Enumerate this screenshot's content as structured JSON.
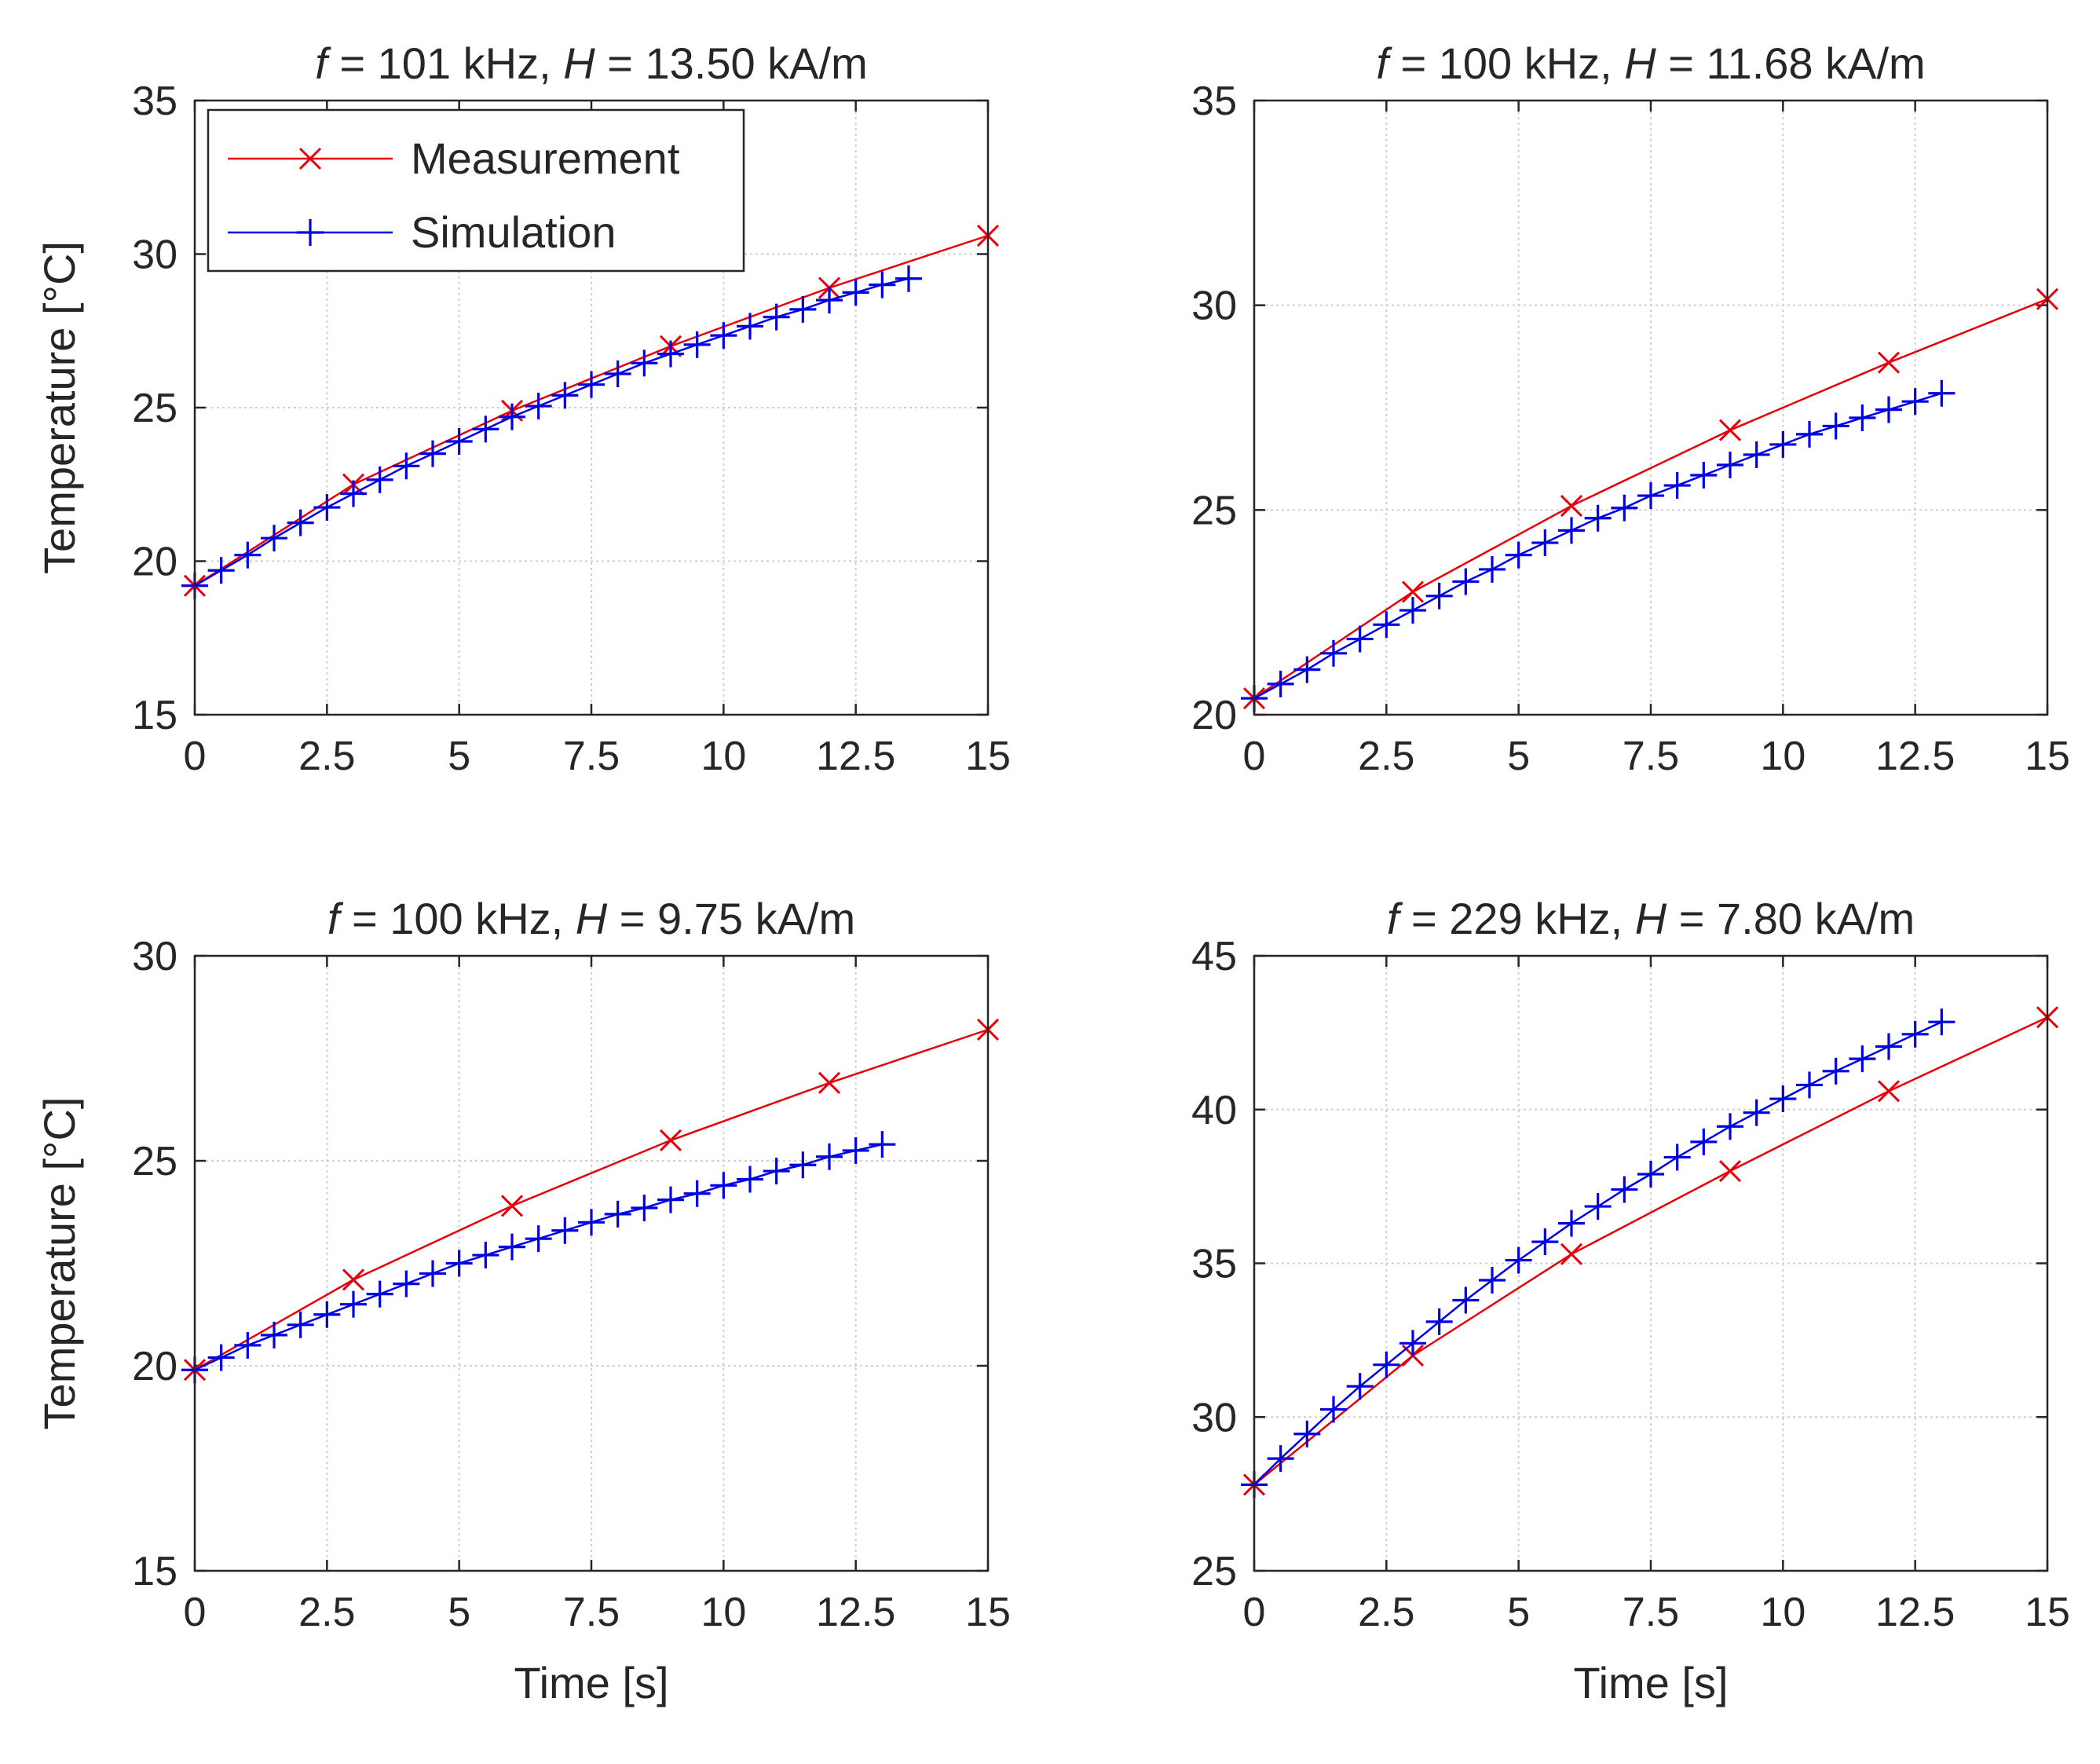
{
  "chart_data": [
    {
      "type": "line",
      "title_parts": [
        "f",
        " = 101 kHz, ",
        "H",
        " = 13.50 kA/m"
      ],
      "xlabel": "",
      "ylabel": "Temperature [°C]",
      "xlim": [
        0,
        15
      ],
      "ylim": [
        15,
        35
      ],
      "xticks": [
        0,
        2.5,
        5,
        7.5,
        10,
        12.5,
        15
      ],
      "yticks": [
        15,
        20,
        25,
        30,
        35
      ],
      "grid": true,
      "legend": {
        "placement": "top-left",
        "entries": [
          "Measurement",
          "Simulation"
        ]
      },
      "series": [
        {
          "name": "Measurement",
          "color": "#e8000b",
          "marker": "x",
          "x": [
            0,
            3,
            6,
            9,
            12,
            15
          ],
          "y": [
            19.2,
            22.5,
            24.9,
            27.0,
            28.9,
            30.6
          ]
        },
        {
          "name": "Simulation",
          "color": "#0000e6",
          "marker": "+",
          "x": [
            0,
            0.5,
            1,
            1.5,
            2,
            2.5,
            3,
            3.5,
            4,
            4.5,
            5,
            5.5,
            6,
            6.5,
            7,
            7.5,
            8,
            8.5,
            9,
            9.5,
            10,
            10.5,
            11,
            11.5,
            12,
            12.5,
            13,
            13.5
          ],
          "y": [
            19.2,
            19.7,
            20.2,
            20.75,
            21.25,
            21.75,
            22.2,
            22.65,
            23.1,
            23.5,
            23.9,
            24.3,
            24.7,
            25.05,
            25.4,
            25.75,
            26.1,
            26.45,
            26.75,
            27.05,
            27.35,
            27.65,
            27.95,
            28.2,
            28.5,
            28.75,
            29.0,
            29.2
          ]
        }
      ]
    },
    {
      "type": "line",
      "title_parts": [
        "f",
        " = 100 kHz, ",
        "H",
        " = 11.68 kA/m"
      ],
      "xlabel": "",
      "ylabel": "",
      "xlim": [
        0,
        15
      ],
      "ylim": [
        20,
        35
      ],
      "xticks": [
        0,
        2.5,
        5,
        7.5,
        10,
        12.5,
        15
      ],
      "yticks": [
        20,
        25,
        30,
        35
      ],
      "grid": true,
      "series": [
        {
          "name": "Measurement",
          "color": "#e8000b",
          "marker": "x",
          "x": [
            0,
            3,
            6,
            9,
            12,
            15
          ],
          "y": [
            20.4,
            23.0,
            25.1,
            26.95,
            28.6,
            30.15
          ]
        },
        {
          "name": "Simulation",
          "color": "#0000e6",
          "marker": "+",
          "x": [
            0,
            0.5,
            1,
            1.5,
            2,
            2.5,
            3,
            3.5,
            4,
            4.5,
            5,
            5.5,
            6,
            6.5,
            7,
            7.5,
            8,
            8.5,
            9,
            9.5,
            10,
            10.5,
            11,
            11.5,
            12,
            12.5,
            13
          ],
          "y": [
            20.4,
            20.75,
            21.1,
            21.5,
            21.85,
            22.2,
            22.55,
            22.9,
            23.25,
            23.55,
            23.9,
            24.2,
            24.5,
            24.8,
            25.05,
            25.35,
            25.6,
            25.85,
            26.1,
            26.35,
            26.6,
            26.85,
            27.05,
            27.25,
            27.45,
            27.65,
            27.85
          ]
        }
      ]
    },
    {
      "type": "line",
      "title_parts": [
        "f",
        " = 100 kHz, ",
        "H",
        " = 9.75 kA/m"
      ],
      "xlabel": "Time [s]",
      "ylabel": "Temperature [°C]",
      "xlim": [
        0,
        15
      ],
      "ylim": [
        15,
        30
      ],
      "xticks": [
        0,
        2.5,
        5,
        7.5,
        10,
        12.5,
        15
      ],
      "yticks": [
        15,
        20,
        25,
        30
      ],
      "grid": true,
      "series": [
        {
          "name": "Measurement",
          "color": "#e8000b",
          "marker": "x",
          "x": [
            0,
            3,
            6,
            9,
            12,
            15
          ],
          "y": [
            19.9,
            22.1,
            23.9,
            25.5,
            26.9,
            28.2
          ]
        },
        {
          "name": "Simulation",
          "color": "#0000e6",
          "marker": "+",
          "x": [
            0,
            0.5,
            1,
            1.5,
            2,
            2.5,
            3,
            3.5,
            4,
            4.5,
            5,
            5.5,
            6,
            6.5,
            7,
            7.5,
            8,
            8.5,
            9,
            9.5,
            10,
            10.5,
            11,
            11.5,
            12,
            12.5,
            13
          ],
          "y": [
            19.9,
            20.2,
            20.5,
            20.75,
            21.0,
            21.25,
            21.5,
            21.75,
            22.0,
            22.25,
            22.5,
            22.7,
            22.9,
            23.1,
            23.3,
            23.5,
            23.7,
            23.85,
            24.05,
            24.2,
            24.4,
            24.55,
            24.75,
            24.9,
            25.1,
            25.25,
            25.4
          ]
        }
      ]
    },
    {
      "type": "line",
      "title_parts": [
        "f",
        " = 229 kHz, ",
        "H",
        " = 7.80 kA/m"
      ],
      "xlabel": "Time [s]",
      "ylabel": "",
      "xlim": [
        0,
        15
      ],
      "ylim": [
        25,
        45
      ],
      "xticks": [
        0,
        2.5,
        5,
        7.5,
        10,
        12.5,
        15
      ],
      "yticks": [
        25,
        30,
        35,
        40,
        45
      ],
      "grid": true,
      "series": [
        {
          "name": "Measurement",
          "color": "#e8000b",
          "marker": "x",
          "x": [
            0,
            3,
            6,
            9,
            12,
            15
          ],
          "y": [
            27.8,
            32.0,
            35.3,
            38.0,
            40.6,
            43.0
          ]
        },
        {
          "name": "Simulation",
          "color": "#0000e6",
          "marker": "+",
          "x": [
            0,
            0.5,
            1,
            1.5,
            2,
            2.5,
            3,
            3.5,
            4,
            4.5,
            5,
            5.5,
            6,
            6.5,
            7,
            7.5,
            8,
            8.5,
            9,
            9.5,
            10,
            10.5,
            11,
            11.5,
            12,
            12.5,
            13
          ],
          "y": [
            27.8,
            28.65,
            29.45,
            30.25,
            31.0,
            31.7,
            32.4,
            33.1,
            33.8,
            34.45,
            35.1,
            35.7,
            36.3,
            36.85,
            37.4,
            37.9,
            38.45,
            38.95,
            39.45,
            39.9,
            40.35,
            40.8,
            41.25,
            41.65,
            42.05,
            42.45,
            42.85
          ]
        }
      ]
    }
  ]
}
